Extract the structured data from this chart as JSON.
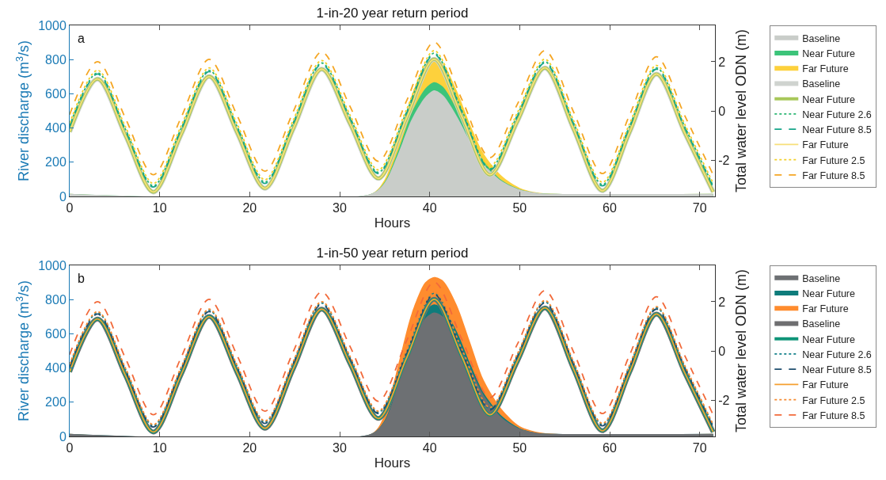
{
  "chart_data": [
    {
      "type": "area",
      "title": "1-in-20 year return period",
      "xlabel": "Hours",
      "ylabel": "River discharge (m$^{3}$/s)",
      "y2label": "Total water level ODN (m)",
      "annotations": [
        "a"
      ],
      "xlim": [
        0,
        71.7
      ],
      "xticks": [
        0,
        10,
        20,
        30,
        40,
        50,
        60,
        70
      ],
      "ylim": [
        0,
        1000
      ],
      "yticks": [
        0,
        200,
        400,
        600,
        800,
        1000
      ],
      "y2lim": [
        -3.48,
        3.48
      ],
      "y2ticks": [
        -2,
        0,
        2
      ],
      "legend": "right",
      "series": [
        {
          "name": "Baseline",
          "color": "#c9cdc9",
          "x": [
            0,
            33.5,
            35,
            36.5,
            38,
            39.5,
            40.5,
            41.5,
            43,
            44.5,
            46,
            48,
            50,
            52,
            54,
            71.5
          ],
          "values": [
            15,
            15,
            80,
            250,
            450,
            580,
            620,
            590,
            470,
            320,
            190,
            90,
            40,
            20,
            15,
            15
          ]
        },
        {
          "name": "Near Future",
          "color": "#3cc47a",
          "x": [
            0,
            33.5,
            35,
            36.5,
            38,
            39.5,
            40.5,
            41.5,
            43,
            44.5,
            46,
            48,
            50,
            52,
            54,
            71.5
          ],
          "values": [
            15,
            15,
            85,
            270,
            490,
            630,
            668,
            640,
            510,
            345,
            205,
            95,
            42,
            20,
            15,
            15
          ]
        },
        {
          "name": "Far Future",
          "color": "#fdd13c",
          "x": [
            0,
            33.5,
            35,
            36.5,
            38,
            39.5,
            40.5,
            41.5,
            43,
            44.5,
            46,
            48,
            50,
            52,
            54,
            71.5
          ],
          "values": [
            15,
            15,
            100,
            320,
            590,
            770,
            810,
            775,
            620,
            420,
            250,
            120,
            50,
            22,
            15,
            15
          ]
        },
        {
          "name": "Baseline",
          "type": "line",
          "axis": "y2",
          "color": "#cfd3cf",
          "line_style": "solid",
          "x": [
            0,
            3.1,
            6.2,
            9.3,
            12.4,
            15.5,
            18.6,
            21.7,
            24.85,
            28,
            31.15,
            34.3,
            37.4,
            40.5,
            43.6,
            46.7,
            49.75,
            52.8,
            56,
            59.2,
            62.2,
            65.2,
            68.35,
            71.5
          ],
          "values": [
            -0.85,
            1.3,
            -1.0,
            -3.3,
            -0.95,
            1.4,
            -0.88,
            -3.15,
            -0.72,
            1.7,
            -0.52,
            -2.75,
            -0.32,
            2.1,
            -0.25,
            -2.6,
            -0.42,
            1.75,
            -0.75,
            -3.25,
            -0.88,
            1.5,
            -0.9,
            -3.3
          ]
        },
        {
          "name": "Near Future",
          "type": "line",
          "axis": "y2",
          "color": "#a8c85a",
          "line_style": "solid",
          "x": [
            0,
            3.1,
            6.2,
            9.3,
            12.4,
            15.5,
            18.6,
            21.7,
            24.85,
            28,
            31.15,
            34.3,
            37.4,
            40.5,
            43.6,
            46.7,
            49.75,
            52.8,
            56,
            59.2,
            62.2,
            65.2,
            68.35,
            71.5
          ],
          "values": [
            -0.85,
            1.3,
            -1.0,
            -3.3,
            -0.95,
            1.4,
            -0.88,
            -3.15,
            -0.72,
            1.7,
            -0.52,
            -2.75,
            -0.32,
            2.1,
            -0.25,
            -2.6,
            -0.42,
            1.75,
            -0.75,
            -3.25,
            -0.88,
            1.5,
            -0.9,
            -3.3
          ]
        },
        {
          "name": "Near Future 2.6",
          "type": "line",
          "axis": "y2",
          "color": "#2bb673",
          "line_style": "dotted",
          "x": [
            0,
            3.1,
            6.2,
            9.3,
            12.4,
            15.5,
            18.6,
            21.7,
            24.85,
            28,
            31.15,
            34.3,
            37.4,
            40.5,
            43.6,
            46.7,
            49.75,
            52.8,
            56,
            59.2,
            62.2,
            65.2,
            68.35,
            71.5
          ],
          "values": [
            -0.6,
            1.55,
            -0.75,
            -3.05,
            -0.7,
            1.65,
            -0.63,
            -2.9,
            -0.47,
            1.95,
            -0.27,
            -2.5,
            -0.07,
            2.35,
            0,
            -2.35,
            -0.17,
            2,
            -0.5,
            -3,
            -0.63,
            1.75,
            -0.65,
            -3.05
          ]
        },
        {
          "name": "Near Future 8.5",
          "type": "line",
          "axis": "y2",
          "color": "#17a589",
          "line_style": "dashed",
          "x": [
            0,
            3.1,
            6.2,
            9.3,
            12.4,
            15.5,
            18.6,
            21.7,
            24.85,
            28,
            31.15,
            34.3,
            37.4,
            40.5,
            43.6,
            46.7,
            49.75,
            52.8,
            56,
            59.2,
            62.2,
            65.2,
            68.35,
            71.5
          ],
          "values": [
            -0.65,
            1.5,
            -0.8,
            -3.1,
            -0.75,
            1.6,
            -0.68,
            -2.95,
            -0.52,
            1.9,
            -0.32,
            -2.55,
            -0.12,
            2.3,
            -0.05,
            -2.4,
            -0.22,
            1.95,
            -0.55,
            -3.05,
            -0.68,
            1.7,
            -0.7,
            -3.1
          ]
        },
        {
          "name": "Far Future",
          "type": "line",
          "axis": "y2",
          "color": "#f8df7a",
          "line_style": "solid",
          "x": [
            0,
            3.1,
            6.2,
            9.3,
            12.4,
            15.5,
            18.6,
            21.7,
            24.85,
            28,
            31.15,
            34.3,
            37.4,
            40.5,
            43.6,
            46.7,
            49.75,
            52.8,
            56,
            59.2,
            62.2,
            65.2,
            68.35,
            71.5
          ],
          "values": [
            -0.85,
            1.3,
            -1.0,
            -3.3,
            -0.95,
            1.4,
            -0.88,
            -3.15,
            -0.72,
            1.7,
            -0.52,
            -2.75,
            -0.32,
            2.1,
            -0.25,
            -2.6,
            -0.42,
            1.75,
            -0.75,
            -3.25,
            -0.88,
            1.5,
            -0.9,
            -3.3
          ]
        },
        {
          "name": "Far Future 2.5",
          "type": "line",
          "axis": "y2",
          "color": "#f2cf2a",
          "line_style": "dotted",
          "x": [
            0,
            3.1,
            6.2,
            9.3,
            12.4,
            15.5,
            18.6,
            21.7,
            24.85,
            28,
            31.15,
            34.3,
            37.4,
            40.5,
            43.6,
            46.7,
            49.75,
            52.8,
            56,
            59.2,
            62.2,
            65.2,
            68.35,
            71.5
          ],
          "values": [
            -0.5,
            1.65,
            -0.65,
            -2.95,
            -0.6,
            1.75,
            -0.53,
            -2.8,
            -0.37,
            2.05,
            -0.17,
            -2.4,
            0.03,
            2.45,
            0.1,
            -2.25,
            -0.07,
            2.1,
            -0.4,
            -2.9,
            -0.53,
            1.85,
            -0.55,
            -2.95
          ]
        },
        {
          "name": "Far Future 8.5",
          "type": "line",
          "axis": "y2",
          "color": "#f5a623",
          "line_style": "dashed",
          "x": [
            0,
            3.1,
            6.2,
            9.3,
            12.4,
            15.5,
            18.6,
            21.7,
            24.85,
            28,
            31.15,
            34.3,
            37.4,
            40.5,
            43.6,
            46.7,
            49.75,
            52.8,
            56,
            59.2,
            62.2,
            65.2,
            68.35,
            71.5
          ],
          "values": [
            -0.15,
            2,
            -0.3,
            -2.6,
            -0.25,
            2.1,
            -0.18,
            -2.45,
            -0.02,
            2.4,
            0.18,
            -2.05,
            0.38,
            2.8,
            0.45,
            -1.9,
            0.28,
            2.45,
            -0.05,
            -2.55,
            -0.18,
            2.2,
            -0.2,
            -2.6
          ]
        }
      ]
    },
    {
      "type": "area",
      "title": "1-in-50 year return period",
      "xlabel": "Hours",
      "ylabel": "River discharge (m$^{3}$/s)",
      "y2label": "Total water level ODN (m)",
      "annotations": [
        "b"
      ],
      "xlim": [
        0,
        71.7
      ],
      "xticks": [
        0,
        10,
        20,
        30,
        40,
        50,
        60,
        70
      ],
      "ylim": [
        0,
        1000
      ],
      "yticks": [
        0,
        200,
        400,
        600,
        800,
        1000
      ],
      "y2lim": [
        -3.48,
        3.48
      ],
      "y2ticks": [
        -2,
        0,
        2
      ],
      "legend": "right",
      "series": [
        {
          "name": "Baseline",
          "color": "#6d7073",
          "x": [
            0,
            33.5,
            35,
            36.5,
            38,
            39.5,
            40.5,
            41.5,
            43,
            44.5,
            46,
            48,
            50,
            52,
            54,
            71.5
          ],
          "values": [
            15,
            15,
            90,
            300,
            540,
            690,
            725,
            700,
            580,
            400,
            240,
            110,
            45,
            20,
            15,
            15
          ]
        },
        {
          "name": "Near Future",
          "color": "#0e7c7b",
          "x": [
            0,
            33.5,
            35,
            36.5,
            38,
            39.5,
            40.5,
            41.5,
            43,
            44.5,
            46,
            48,
            50,
            52,
            54,
            71.5
          ],
          "values": [
            15,
            15,
            95,
            320,
            570,
            735,
            772,
            745,
            615,
            425,
            255,
            120,
            48,
            20,
            15,
            15
          ]
        },
        {
          "name": "Far Future",
          "color": "#ff8c2e",
          "x": [
            0,
            33.5,
            35,
            36.5,
            38,
            39.5,
            40.5,
            41.5,
            43,
            44.5,
            46,
            48,
            50,
            52,
            54,
            71.5
          ],
          "values": [
            15,
            15,
            130,
            420,
            720,
            900,
            932,
            910,
            770,
            550,
            330,
            160,
            60,
            25,
            15,
            15
          ]
        },
        {
          "name": "Baseline",
          "type": "line",
          "axis": "y2",
          "color": "#6e6e70",
          "line_style": "solid",
          "x": [
            0,
            3.1,
            6.2,
            9.3,
            12.4,
            15.5,
            18.6,
            21.7,
            24.85,
            28,
            31.15,
            34.3,
            37.4,
            40.5,
            43.6,
            46.7,
            49.75,
            52.8,
            56,
            59.2,
            62.2,
            65.2,
            68.35,
            71.5
          ],
          "values": [
            -0.85,
            1.3,
            -1.0,
            -3.3,
            -0.95,
            1.4,
            -0.88,
            -3.15,
            -0.72,
            1.7,
            -0.52,
            -2.75,
            -0.32,
            2.1,
            -0.25,
            -2.6,
            -0.42,
            1.75,
            -0.75,
            -3.25,
            -0.88,
            1.5,
            -0.9,
            -3.3
          ]
        },
        {
          "name": "Near Future",
          "type": "line",
          "axis": "y2",
          "color": "#0f9478",
          "line_style": "solid",
          "x": [
            0,
            3.1,
            6.2,
            9.3,
            12.4,
            15.5,
            18.6,
            21.7,
            24.85,
            28,
            31.15,
            34.3,
            37.4,
            40.5,
            43.6,
            46.7,
            49.75,
            52.8,
            56,
            59.2,
            62.2,
            65.2,
            68.35,
            71.5
          ],
          "values": [
            -0.85,
            1.3,
            -1.0,
            -3.3,
            -0.95,
            1.4,
            -0.88,
            -3.15,
            -0.72,
            1.7,
            -0.52,
            -2.75,
            -0.32,
            2.1,
            -0.25,
            -2.6,
            -0.42,
            1.75,
            -0.75,
            -3.25,
            -0.88,
            1.5,
            -0.9,
            -3.3
          ]
        },
        {
          "name": "Near Future 2.6",
          "type": "line",
          "axis": "y2",
          "color": "#13808a",
          "line_style": "dotted",
          "x": [
            0,
            3.1,
            6.2,
            9.3,
            12.4,
            15.5,
            18.6,
            21.7,
            24.85,
            28,
            31.15,
            34.3,
            37.4,
            40.5,
            43.6,
            46.7,
            49.75,
            52.8,
            56,
            59.2,
            62.2,
            65.2,
            68.35,
            71.5
          ],
          "values": [
            -0.6,
            1.55,
            -0.75,
            -3.05,
            -0.7,
            1.65,
            -0.63,
            -2.9,
            -0.47,
            1.95,
            -0.27,
            -2.5,
            -0.07,
            2.35,
            0,
            -2.35,
            -0.17,
            2,
            -0.5,
            -3,
            -0.63,
            1.75,
            -0.65,
            -3.05
          ]
        },
        {
          "name": "Near Future 8.5",
          "type": "line",
          "axis": "y2",
          "color": "#1f4e6e",
          "line_style": "dashed",
          "x": [
            0,
            3.1,
            6.2,
            9.3,
            12.4,
            15.5,
            18.6,
            21.7,
            24.85,
            28,
            31.15,
            34.3,
            37.4,
            40.5,
            43.6,
            46.7,
            49.75,
            52.8,
            56,
            59.2,
            62.2,
            65.2,
            68.35,
            71.5
          ],
          "values": [
            -0.65,
            1.5,
            -0.8,
            -3.1,
            -0.75,
            1.6,
            -0.68,
            -2.95,
            -0.52,
            1.9,
            -0.32,
            -2.55,
            -0.12,
            2.3,
            -0.05,
            -2.4,
            -0.22,
            1.95,
            -0.55,
            -3.05,
            -0.68,
            1.7,
            -0.7,
            -3.1
          ]
        },
        {
          "name": "Far Future",
          "type": "line",
          "axis": "y2",
          "color": "#f5a030",
          "line_style": "solid",
          "x": [
            0,
            3.1,
            6.2,
            9.3,
            12.4,
            15.5,
            18.6,
            21.7,
            24.85,
            28,
            31.15,
            34.3,
            37.4,
            40.5,
            43.6,
            46.7,
            49.75,
            52.8,
            56,
            59.2,
            62.2,
            65.2,
            68.35,
            71.5
          ],
          "values": [
            -0.85,
            1.3,
            -1.0,
            -3.3,
            -0.95,
            1.4,
            -0.88,
            -3.15,
            -0.72,
            1.7,
            -0.52,
            -2.75,
            -0.32,
            2.1,
            -0.25,
            -2.6,
            -0.42,
            1.75,
            -0.75,
            -3.25,
            -0.88,
            1.5,
            -0.9,
            -3.3
          ]
        },
        {
          "name": "Far Future 2.5",
          "type": "line",
          "axis": "y2",
          "color": "#f58a30",
          "line_style": "dotted",
          "x": [
            0,
            3.1,
            6.2,
            9.3,
            12.4,
            15.5,
            18.6,
            21.7,
            24.85,
            28,
            31.15,
            34.3,
            37.4,
            40.5,
            43.6,
            46.7,
            49.75,
            52.8,
            56,
            59.2,
            62.2,
            65.2,
            68.35,
            71.5
          ],
          "values": [
            -0.55,
            1.6,
            -0.7,
            -3,
            -0.65,
            1.7,
            -0.58,
            -2.85,
            -0.42,
            2,
            -0.22,
            -2.45,
            -0.02,
            2.4,
            0.05,
            -2.3,
            -0.12,
            2.05,
            -0.45,
            -2.95,
            -0.58,
            1.8,
            -0.6,
            -3
          ]
        },
        {
          "name": "Far Future 8.5",
          "type": "line",
          "axis": "y2",
          "color": "#f26a3a",
          "line_style": "dashed",
          "x": [
            0,
            3.1,
            6.2,
            9.3,
            12.4,
            15.5,
            18.6,
            21.7,
            24.85,
            28,
            31.15,
            34.3,
            37.4,
            40.5,
            43.6,
            46.7,
            49.75,
            52.8,
            56,
            59.2,
            62.2,
            65.2,
            68.35,
            71.5
          ],
          "values": [
            -0.15,
            2,
            -0.3,
            -2.6,
            -0.25,
            2.1,
            -0.18,
            -2.45,
            -0.02,
            2.4,
            0.18,
            -2.05,
            0.38,
            2.8,
            0.45,
            -1.9,
            0.28,
            2.45,
            -0.05,
            -2.55,
            -0.18,
            2.2,
            -0.2,
            -2.6
          ]
        }
      ]
    }
  ]
}
